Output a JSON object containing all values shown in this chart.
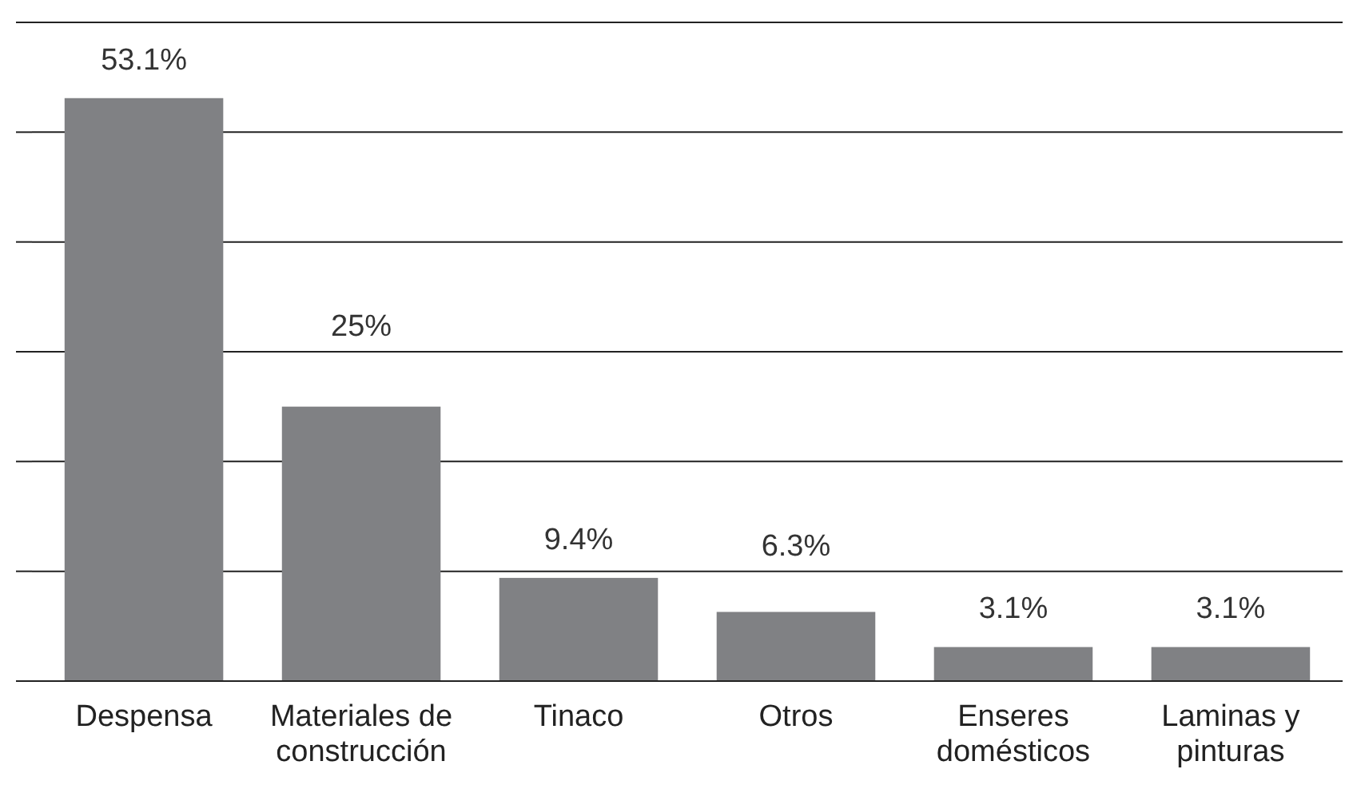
{
  "chart_data": {
    "type": "bar",
    "categories": [
      "Despensa",
      "Materiales de construcción",
      "Tinaco",
      "Otros",
      "Enseres domésticos",
      "Laminas y pinturas"
    ],
    "values": [
      53.1,
      25,
      9.4,
      6.3,
      3.1,
      3.1
    ],
    "value_labels": [
      "53.1%",
      "25%",
      "9.4%",
      "6.3%",
      "3.1%",
      "3.1%"
    ],
    "color": "#808184",
    "ylim": [
      0,
      60
    ],
    "yticks": [
      {
        "value": 0,
        "label": null
      },
      {
        "value": 10,
        "label": null
      },
      {
        "value": 20,
        "label": null
      },
      {
        "value": 30,
        "label": null
      },
      {
        "value": 40,
        "label": null
      },
      {
        "value": 50,
        "label": null
      },
      {
        "value": 60,
        "label": null
      }
    ],
    "tick_labels": "x",
    "grid": "y"
  }
}
